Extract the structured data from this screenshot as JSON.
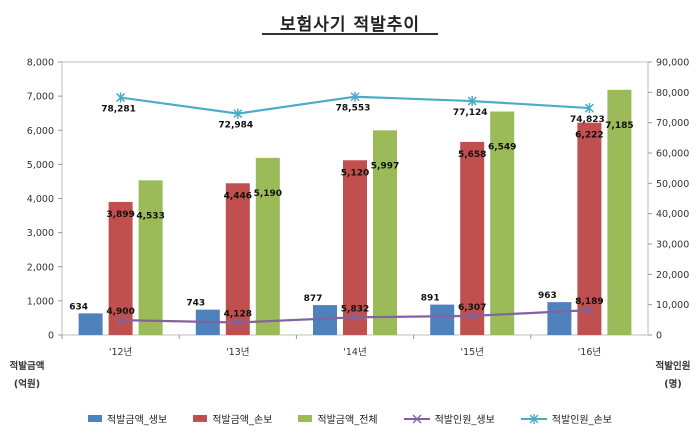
{
  "title": "보험사기 적발추이",
  "axis": {
    "left_unit_line1": "적발금액",
    "left_unit_line2": "(억원)",
    "right_unit_line1": "적발인원",
    "right_unit_line2": "(명)"
  },
  "colors": {
    "life_amount": "#4F81BD",
    "nonlife_amount": "#C0504D",
    "total_amount": "#9BBB59",
    "life_people": "#8064A2",
    "nonlife_people": "#4BACC6"
  },
  "chart_data": {
    "type": "bar",
    "title": "보험사기 적발추이",
    "categories": [
      "'12년",
      "'13년",
      "'14년",
      "'15년",
      "'16년"
    ],
    "ylim_left": [
      0,
      8000
    ],
    "yticks_left": [
      "0",
      "1,000",
      "2,000",
      "3,000",
      "4,000",
      "5,000",
      "6,000",
      "7,000",
      "8,000"
    ],
    "ylim_right": [
      0,
      90000
    ],
    "yticks_right": [
      "0",
      "10,000",
      "20,000",
      "30,000",
      "40,000",
      "50,000",
      "60,000",
      "70,000",
      "80,000",
      "90,000"
    ],
    "grid": false,
    "legend_position": "bottom",
    "series": [
      {
        "name": "적발금액_생보",
        "kind": "bar",
        "axis": "left",
        "values": [
          634,
          743,
          877,
          891,
          963
        ],
        "labels": [
          "634",
          "743",
          "877",
          "891",
          "963"
        ]
      },
      {
        "name": "적발금액_손보",
        "kind": "bar",
        "axis": "left",
        "values": [
          3899,
          4446,
          5120,
          5658,
          6222
        ],
        "labels": [
          "3,899",
          "4,446",
          "5,120",
          "5,658",
          "6,222"
        ]
      },
      {
        "name": "적발금액_전체",
        "kind": "bar",
        "axis": "left",
        "values": [
          4533,
          5190,
          5997,
          6549,
          7185
        ],
        "labels": [
          "4,533",
          "5,190",
          "5,997",
          "6,549",
          "7,185"
        ]
      },
      {
        "name": "적발인원_생보",
        "kind": "line",
        "axis": "right",
        "values": [
          4900,
          4128,
          5832,
          6307,
          8189
        ],
        "labels": [
          "4,900",
          "4,128",
          "5,832",
          "6,307",
          "8,189"
        ]
      },
      {
        "name": "적발인원_손보",
        "kind": "line",
        "axis": "right",
        "values": [
          78281,
          72984,
          78553,
          77124,
          74823
        ],
        "labels": [
          "78,281",
          "72,984",
          "78,553",
          "77,124",
          "74,823"
        ]
      }
    ]
  }
}
